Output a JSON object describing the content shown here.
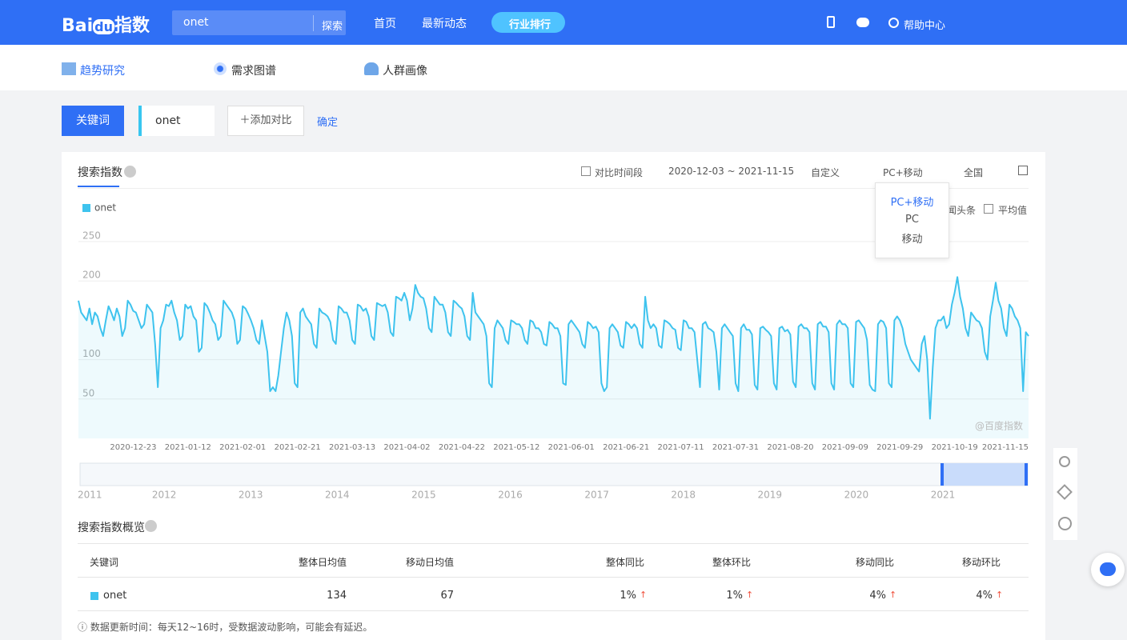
{
  "header": {
    "logo": [
      "Bai",
      "du",
      "指数"
    ],
    "search_value": "onet",
    "search_button": "探索",
    "nav": [
      "首页",
      "最新动态",
      "行业排行"
    ],
    "help": "帮助中心"
  },
  "tabs": [
    "趋势研究",
    "需求图谱",
    "人群画像"
  ],
  "keyword_bar": {
    "label": "关键词",
    "keyword": "onet",
    "add": "＋添加对比",
    "confirm": "确定"
  },
  "panel": {
    "title": "搜索指数",
    "controls": [
      "对比时间段",
      "2020-12-03 ~ 2021-11-15",
      "自定义",
      "PC+移动",
      "全国"
    ],
    "dropdown": [
      "PC+移动",
      "PC",
      "移动"
    ],
    "options": [
      "闻头条",
      "平均值"
    ],
    "watermark": "@百度指数"
  },
  "chart_data": {
    "type": "line",
    "categories": [
      null,
      null,
      null,
      null,
      null,
      null,
      null,
      null,
      null,
      null,
      null,
      null,
      null,
      null,
      null,
      null,
      null,
      null,
      null,
      null,
      "2020-12-23",
      null,
      null,
      null,
      null,
      null,
      null,
      null,
      null,
      null,
      null,
      null,
      null,
      null,
      null,
      null,
      null,
      null,
      null,
      null,
      "2021-01-12",
      null,
      null,
      null,
      null,
      null,
      null,
      null,
      null,
      null,
      null,
      null,
      null,
      null,
      null,
      null,
      null,
      null,
      null,
      null,
      "2021-02-01",
      null,
      null,
      null,
      null,
      null,
      null,
      null,
      null,
      null,
      null,
      null,
      null,
      null,
      null,
      null,
      null,
      null,
      null,
      null,
      "2021-02-21",
      null,
      null,
      null,
      null,
      null,
      null,
      null,
      null,
      null,
      null,
      null,
      null,
      null,
      null,
      null,
      null,
      null,
      null,
      null,
      "2021-03-13",
      null,
      null,
      null,
      null,
      null,
      null,
      null,
      null,
      null,
      null,
      null,
      null,
      null,
      null,
      null,
      null,
      null,
      null,
      null,
      "2021-04-02",
      null,
      null,
      null,
      null,
      null,
      null,
      null,
      null,
      null,
      null,
      null,
      null,
      null,
      null,
      null,
      null,
      null,
      null,
      null,
      "2021-04-22",
      null,
      null,
      null,
      null,
      null,
      null,
      null,
      null,
      null,
      null,
      null,
      null,
      null,
      null,
      null,
      null,
      null,
      null,
      null,
      "2021-05-12",
      null,
      null,
      null,
      null,
      null,
      null,
      null,
      null,
      null,
      null,
      null,
      null,
      null,
      null,
      null,
      null,
      null,
      null,
      null,
      "2021-06-01",
      null,
      null,
      null,
      null,
      null,
      null,
      null,
      null,
      null,
      null,
      null,
      null,
      null,
      null,
      null,
      null,
      null,
      null,
      null,
      "2021-06-21",
      null,
      null,
      null,
      null,
      null,
      null,
      null,
      null,
      null,
      null,
      null,
      null,
      null,
      null,
      null,
      null,
      null,
      null,
      null,
      "2021-07-11",
      null,
      null,
      null,
      null,
      null,
      null,
      null,
      null,
      null,
      null,
      null,
      null,
      null,
      null,
      null,
      null,
      null,
      null,
      null,
      "2021-07-31",
      null,
      null,
      null,
      null,
      null,
      null,
      null,
      null,
      null,
      null,
      null,
      null,
      null,
      null,
      null,
      null,
      null,
      null,
      null,
      "2021-08-20",
      null,
      null,
      null,
      null,
      null,
      null,
      null,
      null,
      null,
      null,
      null,
      null,
      null,
      null,
      null,
      null,
      null,
      null,
      null,
      "2021-09-09",
      null,
      null,
      null,
      null,
      null,
      null,
      null,
      null,
      null,
      null,
      null,
      null,
      null,
      null,
      null,
      null,
      null,
      null,
      null,
      "2021-09-29",
      null,
      null,
      null,
      null,
      null,
      null,
      null,
      null,
      null,
      null,
      null,
      null,
      null,
      null,
      null,
      null,
      null,
      null,
      null,
      "2021-10-19",
      null,
      null,
      null,
      null,
      null,
      null,
      null,
      null,
      null,
      null,
      null,
      null,
      null,
      null,
      null,
      null,
      null,
      null,
      null,
      null,
      null,
      null,
      null,
      null,
      null,
      null,
      "2021-11-15"
    ],
    "series": [
      {
        "name": "onet",
        "color": "#3ec3ee",
        "values": [
          175,
          160,
          155,
          150,
          165,
          145,
          160,
          155,
          140,
          130,
          150,
          168,
          160,
          150,
          165,
          155,
          130,
          140,
          175,
          170,
          162,
          160,
          150,
          140,
          145,
          170,
          165,
          160,
          120,
          65,
          140,
          150,
          170,
          168,
          175,
          160,
          150,
          125,
          130,
          170,
          165,
          168,
          155,
          150,
          110,
          115,
          172,
          168,
          160,
          150,
          145,
          125,
          130,
          175,
          170,
          165,
          160,
          150,
          120,
          125,
          168,
          165,
          158,
          150,
          140,
          125,
          120,
          150,
          130,
          110,
          60,
          65,
          60,
          80,
          110,
          140,
          160,
          150,
          130,
          70,
          65,
          160,
          165,
          155,
          150,
          145,
          120,
          115,
          165,
          160,
          158,
          155,
          148,
          125,
          120,
          168,
          165,
          160,
          160,
          150,
          125,
          120,
          170,
          168,
          162,
          165,
          155,
          130,
          125,
          172,
          170,
          168,
          170,
          160,
          135,
          130,
          180,
          178,
          175,
          185,
          175,
          150,
          165,
          195,
          185,
          180,
          178,
          165,
          140,
          135,
          180,
          175,
          170,
          170,
          160,
          135,
          130,
          175,
          172,
          168,
          165,
          155,
          130,
          125,
          185,
          160,
          155,
          150,
          145,
          130,
          70,
          65,
          140,
          150,
          145,
          140,
          125,
          120,
          150,
          148,
          145,
          145,
          140,
          125,
          120,
          150,
          148,
          140,
          140,
          135,
          120,
          118,
          148,
          145,
          140,
          140,
          130,
          70,
          68,
          145,
          150,
          145,
          140,
          135,
          120,
          115,
          148,
          145,
          140,
          142,
          135,
          70,
          60,
          65,
          140,
          145,
          140,
          135,
          118,
          115,
          148,
          145,
          140,
          145,
          140,
          120,
          115,
          180,
          150,
          140,
          145,
          140,
          118,
          115,
          150,
          148,
          145,
          140,
          138,
          115,
          112,
          150,
          148,
          140,
          140,
          135,
          100,
          65,
          145,
          148,
          140,
          138,
          135,
          110,
          62,
          140,
          145,
          140,
          135,
          130,
          70,
          60,
          140,
          145,
          138,
          138,
          132,
          68,
          62,
          140,
          142,
          138,
          135,
          130,
          70,
          62,
          140,
          142,
          136,
          138,
          132,
          72,
          65,
          142,
          145,
          140,
          140,
          135,
          70,
          62,
          145,
          148,
          142,
          142,
          135,
          70,
          62,
          145,
          150,
          145,
          145,
          140,
          70,
          65,
          148,
          150,
          145,
          140,
          125,
          68,
          62,
          60,
          145,
          150,
          148,
          140,
          70,
          65,
          150,
          155,
          150,
          140,
          120,
          110,
          100,
          95,
          90,
          85,
          120,
          130,
          100,
          25,
          90,
          140,
          150,
          150,
          155,
          140,
          145,
          170,
          185,
          205,
          180,
          165,
          140,
          130,
          160,
          155,
          150,
          148,
          140,
          110,
          100,
          155,
          175,
          198,
          175,
          165,
          140,
          130,
          170,
          165,
          155,
          150,
          140,
          60,
          135,
          130
        ]
      }
    ],
    "ylim": [
      0,
      250
    ],
    "yticks": [
      50,
      100,
      200,
      250
    ],
    "grid": true,
    "area": true
  },
  "navigator": {
    "years": [
      "2011",
      "2012",
      "2013",
      "2014",
      "2015",
      "2016",
      "2017",
      "2018",
      "2019",
      "2020",
      "2021"
    ]
  },
  "overview": {
    "title": "搜索指数概览",
    "columns": [
      "关键词",
      "整体日均值",
      "移动日均值",
      "整体同比",
      "整体环比",
      "移动同比",
      "移动环比"
    ],
    "rows": [
      [
        "onet",
        "134",
        "67",
        "1%",
        "1%",
        "4%",
        "4%"
      ]
    ],
    "note": "数据更新时间：每天12~16时，受数据波动影响，可能会有延迟。"
  }
}
